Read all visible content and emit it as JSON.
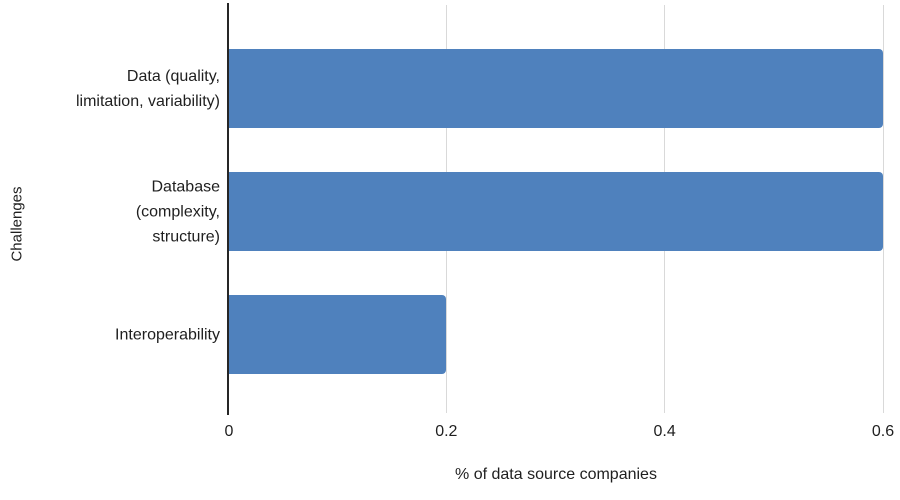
{
  "chart_data": {
    "type": "bar",
    "orientation": "horizontal",
    "title": "",
    "categories": [
      "Data (quality, limitation, variability)",
      "Database (complexity, structure)",
      "Interoperability"
    ],
    "category_label_lines": [
      [
        "Data (quality,",
        "limitation, variability)"
      ],
      [
        "Database",
        "(complexity,",
        "structure)"
      ],
      [
        "Interoperability"
      ]
    ],
    "values": [
      0.6,
      0.6,
      0.2
    ],
    "xlabel": "% of data source companies",
    "ylabel": "Challenges",
    "xlim": [
      0,
      0.6
    ],
    "xticks": [
      0,
      0.2,
      0.4,
      0.6
    ],
    "xtick_labels": [
      "0",
      "0.2",
      "0.4",
      "0.6"
    ],
    "grid": true,
    "legend": "none",
    "bar_color": "#4F81BD",
    "gridline_color": "#D9D9D9",
    "axis_color": "#262626"
  }
}
